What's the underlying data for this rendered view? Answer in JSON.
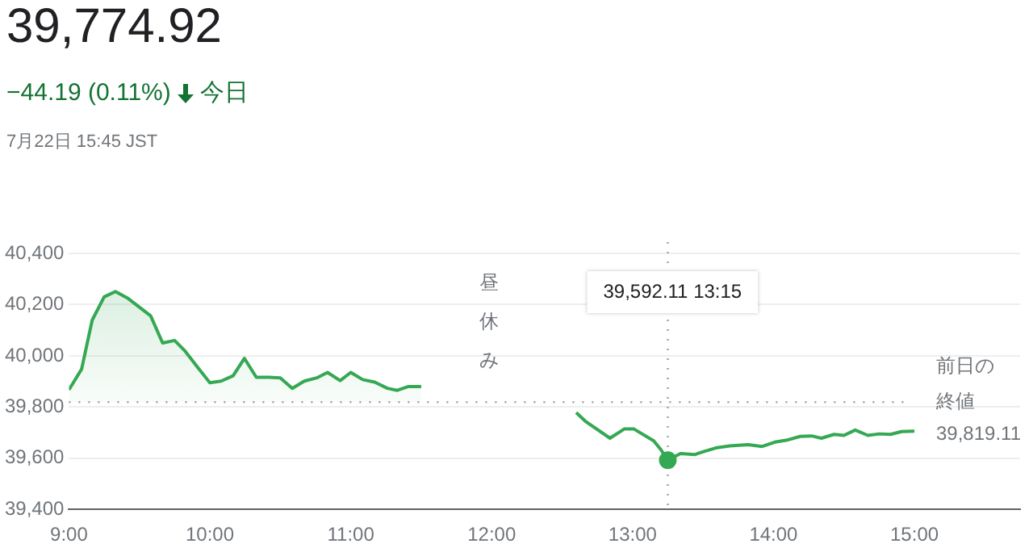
{
  "chart_data": {
    "type": "area",
    "title": "39,774.92",
    "subtitle": "−44.19 (0.11%)",
    "annotations": [
      "今日",
      "7月22日 15:45 JST",
      "昼休み",
      "39,592.11 13:15"
    ],
    "x": [
      9.0,
      9.09,
      9.165,
      9.25,
      9.33,
      9.42,
      9.5,
      9.58,
      9.665,
      9.75,
      9.825,
      9.915,
      10.0,
      10.08,
      10.165,
      10.245,
      10.33,
      10.42,
      10.5,
      10.585,
      10.67,
      10.76,
      10.835,
      10.925,
      11.0,
      11.085,
      11.17,
      11.26,
      11.33,
      11.41,
      11.5,
      12.0,
      12.6,
      12.67,
      12.84,
      12.94,
      13.01,
      13.15,
      13.2,
      13.25,
      13.34,
      13.44,
      13.49,
      13.59,
      13.69,
      13.82,
      13.92,
      14.01,
      14.09,
      14.19,
      14.27,
      14.34,
      14.43,
      14.5,
      14.58,
      14.67,
      14.75,
      14.83,
      14.91,
      15.0
    ],
    "series": [
      {
        "color": "#34a853",
        "values": [
          39867,
          39948,
          40139,
          40230,
          40251,
          40224,
          40190,
          40156,
          40050,
          40060,
          40018,
          39954,
          39895,
          39901,
          39922,
          39990,
          39916,
          39916,
          39914,
          39873,
          39901,
          39914,
          39935,
          39903,
          39935,
          39907,
          39897,
          39873,
          39865,
          39880,
          39880,
          null,
          39778,
          39742,
          39678,
          39714,
          39714,
          39668,
          39634,
          39592.11,
          39618,
          39614,
          39623,
          39640,
          39648,
          39653,
          39646,
          39663,
          39670,
          39685,
          39687,
          39678,
          39693,
          39689,
          39710,
          39689,
          39695,
          39693,
          39704,
          39706
        ]
      }
    ],
    "xlim": [
      9,
      15.75
    ],
    "xticks": [
      {
        "value": 9,
        "label": "9:00"
      },
      {
        "value": 10,
        "label": "10:00"
      },
      {
        "value": 11,
        "label": "11:00"
      },
      {
        "value": 12,
        "label": "12:00"
      },
      {
        "value": 13,
        "label": "13:00"
      },
      {
        "value": 14,
        "label": "14:00"
      },
      {
        "value": 15,
        "label": "15:00"
      }
    ],
    "ylim": [
      39400,
      40400
    ],
    "yticks": [
      {
        "value": 39400,
        "label": "39,400"
      },
      {
        "value": 39600,
        "label": "39,600"
      },
      {
        "value": 39800,
        "label": "39,800"
      },
      {
        "value": 40000,
        "label": "40,000"
      },
      {
        "value": 40200,
        "label": "40,200"
      },
      {
        "value": 40400,
        "label": "40,400"
      }
    ],
    "ref_lines": [
      {
        "axis": "y",
        "value": 39819.11,
        "label": "前日の終値 39,819.11",
        "line_style": "dotted",
        "color": "#9aa0a6"
      },
      {
        "axis": "x",
        "value": 13.25,
        "line_style": "dotted",
        "color": "#9aa0a6"
      }
    ],
    "grid": "y",
    "legend": false,
    "marker": "none",
    "line_style": "solid"
  }
}
